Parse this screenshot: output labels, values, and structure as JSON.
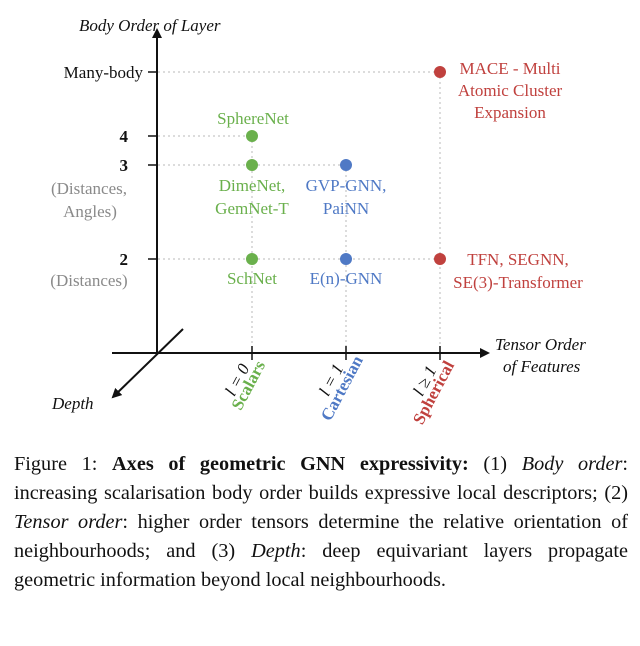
{
  "colors": {
    "green": "#6ab04c",
    "blue": "#4f79c5",
    "red": "#c0413e",
    "grid": "#b8b8b8",
    "axis": "#111111",
    "muted": "#8a8a8a"
  },
  "axes": {
    "y_title": "Body Order of Layer",
    "x_title_line1": "Tensor Order",
    "x_title_line2": "of Features",
    "z_title": "Depth"
  },
  "y_ticks": {
    "many_body": "Many-body",
    "four": "4",
    "three": "3",
    "three_sub1": "(Distances,",
    "three_sub2": "Angles)",
    "two": "2",
    "two_sub": "(Distances)"
  },
  "x_ticks": {
    "l0": "l = 0",
    "l0_name": "Scalars",
    "l1": "l = 1",
    "l1_name": "Cartesian",
    "l2": "l ≥ 1",
    "l2_name": "Spherical"
  },
  "models": {
    "spherenet": "SphereNet",
    "dimenet_1": "DimeNet,",
    "dimenet_2": "GemNet-T",
    "schnet": "SchNet",
    "gvp_1": "GVP-GNN,",
    "gvp_2": "PaiNN",
    "egnn": "E(n)-GNN",
    "mace_1": "MACE - Multi",
    "mace_2": "Atomic Cluster",
    "mace_3": "Expansion",
    "tfn_1": "TFN, SEGNN,",
    "tfn_2": "SE(3)-Transformer"
  },
  "caption": {
    "prefix": "Figure 1: ",
    "title": "Axes of geometric GNN expressivity:",
    "p1": " (1) ",
    "body_order": "Body order",
    "p2": ": increasing scalarisation body order builds expressive local descriptors; (2) ",
    "tensor_order": "Tensor order",
    "p3": ": higher order tensors determine the relative orientation of neighbourhoods; and (3) ",
    "depth": "Depth",
    "p4": ": deep equivariant layers propagate geometric information beyond local neighbourhoods."
  }
}
